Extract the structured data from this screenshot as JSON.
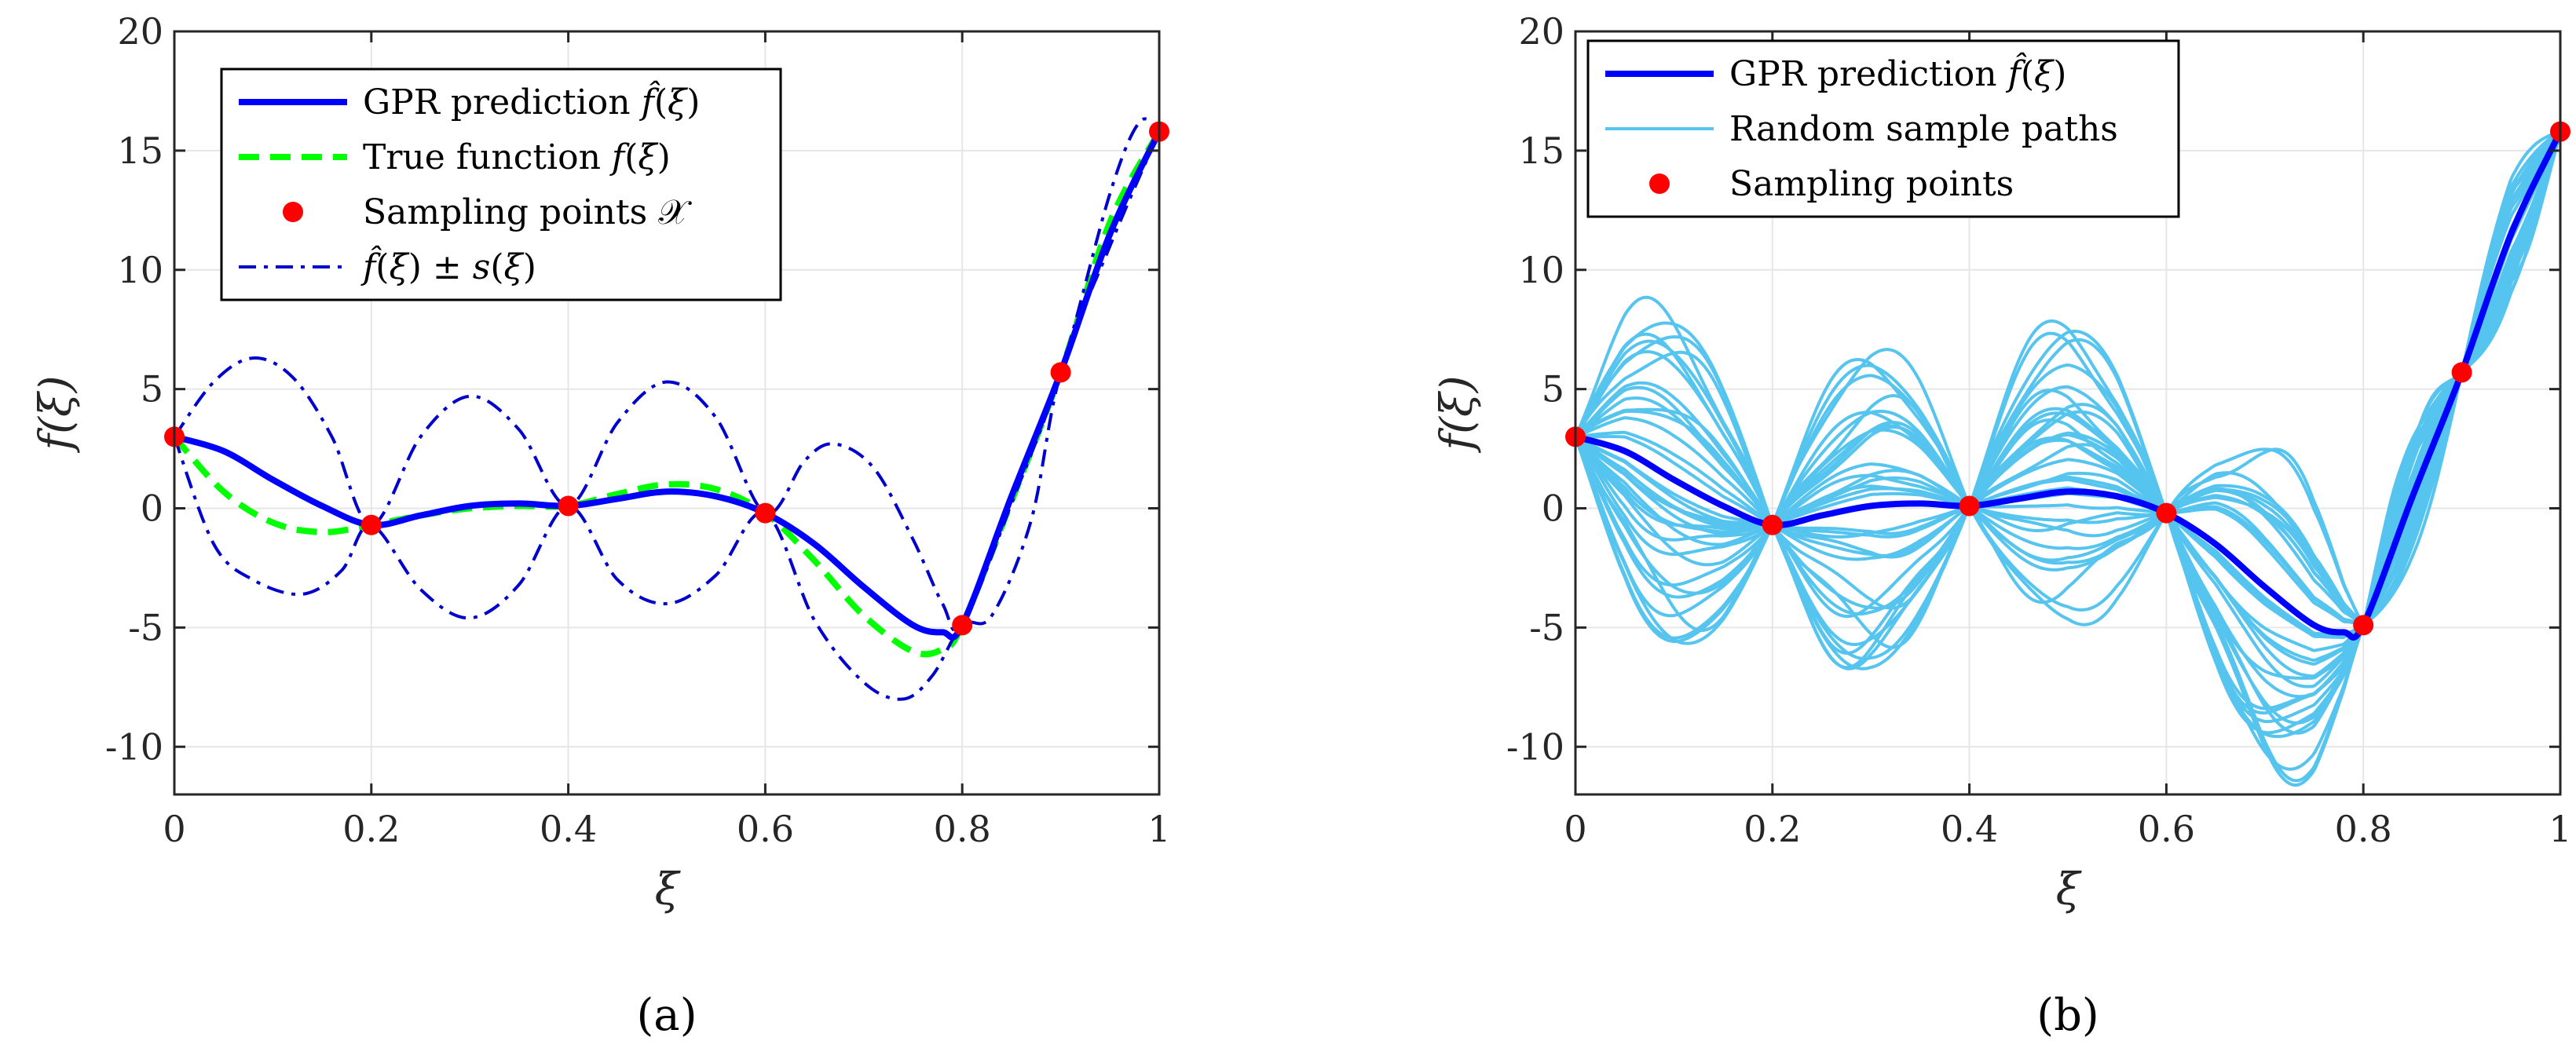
{
  "colors": {
    "gpr": "#0000ff",
    "true_fn": "#00ff00",
    "points": "#ff0000",
    "band": "#0000cc",
    "samples": "#55c4ee",
    "grid": "#e6e6e6",
    "axis": "#262626"
  },
  "chart_data": [
    {
      "type": "line",
      "panel_label": "(a)",
      "xlabel": "ξ",
      "ylabel": "f(ξ)",
      "xlim": [
        0,
        1
      ],
      "ylim": [
        -12,
        20
      ],
      "xticks": [
        "0",
        "0.2",
        "0.4",
        "0.6",
        "0.8",
        "1"
      ],
      "yticks": [
        "-10",
        "-5",
        "0",
        "5",
        "10",
        "15",
        "20"
      ],
      "grid": true,
      "legend_position": "top-left",
      "legend": [
        "GPR prediction f̂(ξ)",
        "True function f(ξ)",
        "Sampling points 𝒳",
        "f̂(ξ) ± s(ξ)"
      ],
      "series": [
        {
          "name": "GPR prediction",
          "style": "solid",
          "x": [
            0,
            0.05,
            0.1,
            0.15,
            0.2,
            0.25,
            0.3,
            0.35,
            0.4,
            0.45,
            0.5,
            0.55,
            0.6,
            0.65,
            0.7,
            0.75,
            0.78,
            0.8,
            0.85,
            0.9,
            0.95,
            1.0
          ],
          "y": [
            3.0,
            2.4,
            1.2,
            0.1,
            -0.7,
            -0.3,
            0.1,
            0.2,
            0.1,
            0.4,
            0.7,
            0.5,
            -0.2,
            -1.5,
            -3.3,
            -4.9,
            -5.2,
            -4.9,
            0.5,
            5.7,
            11.5,
            15.8
          ]
        },
        {
          "name": "True function",
          "style": "dashed",
          "x": [
            0,
            0.05,
            0.1,
            0.15,
            0.2,
            0.25,
            0.3,
            0.35,
            0.4,
            0.45,
            0.5,
            0.55,
            0.6,
            0.65,
            0.7,
            0.75,
            0.78,
            0.8,
            0.85,
            0.9,
            0.95,
            1.0
          ],
          "y": [
            3.0,
            0.7,
            -0.6,
            -1.0,
            -0.7,
            -0.3,
            0.0,
            0.1,
            0.1,
            0.6,
            1.0,
            0.8,
            -0.2,
            -2.2,
            -4.5,
            -6.0,
            -5.9,
            -4.9,
            0.3,
            5.7,
            12.0,
            15.8
          ]
        },
        {
          "name": "Upper bound",
          "style": "dashdot",
          "x": [
            0,
            0.04,
            0.08,
            0.12,
            0.16,
            0.2,
            0.25,
            0.3,
            0.35,
            0.4,
            0.45,
            0.5,
            0.55,
            0.6,
            0.64,
            0.67,
            0.71,
            0.75,
            0.78,
            0.8,
            0.85,
            0.9,
            0.95,
            0.98,
            1.0
          ],
          "y": [
            3.0,
            5.3,
            6.3,
            5.5,
            3.0,
            -0.7,
            3.0,
            4.7,
            3.3,
            0.1,
            3.6,
            5.3,
            3.8,
            -0.2,
            2.0,
            2.7,
            1.7,
            -1.3,
            -4.0,
            -4.9,
            0.2,
            5.7,
            13.2,
            16.2,
            15.8
          ]
        },
        {
          "name": "Lower bound",
          "style": "dashdot",
          "x": [
            0,
            0.04,
            0.08,
            0.13,
            0.17,
            0.2,
            0.25,
            0.3,
            0.35,
            0.4,
            0.45,
            0.5,
            0.55,
            0.6,
            0.65,
            0.7,
            0.74,
            0.77,
            0.8,
            0.83,
            0.87,
            0.9,
            0.95,
            1.0
          ],
          "y": [
            3.0,
            -1.5,
            -3.0,
            -3.6,
            -2.6,
            -0.7,
            -3.4,
            -4.6,
            -3.2,
            0.1,
            -3.0,
            -4.0,
            -2.8,
            -0.2,
            -4.7,
            -7.3,
            -8.0,
            -7.0,
            -4.9,
            -4.5,
            -0.5,
            5.7,
            11.0,
            15.8
          ]
        }
      ],
      "points": {
        "x": [
          0,
          0.2,
          0.4,
          0.6,
          0.8,
          0.9,
          1.0
        ],
        "y": [
          3.0,
          -0.7,
          0.1,
          -0.2,
          -4.9,
          5.7,
          15.8
        ]
      }
    },
    {
      "type": "line",
      "panel_label": "(b)",
      "xlabel": "ξ",
      "ylabel": "f(ξ)",
      "xlim": [
        0,
        1
      ],
      "ylim": [
        -12,
        20
      ],
      "xticks": [
        "0",
        "0.2",
        "0.4",
        "0.6",
        "0.8",
        "1"
      ],
      "yticks": [
        "-10",
        "-5",
        "0",
        "5",
        "10",
        "15",
        "20"
      ],
      "grid": true,
      "legend_position": "top-left",
      "legend": [
        "GPR prediction f̂(ξ)",
        "Random sample paths",
        "Sampling points"
      ],
      "series": [
        {
          "name": "GPR prediction",
          "style": "solid",
          "x": [
            0,
            0.05,
            0.1,
            0.15,
            0.2,
            0.25,
            0.3,
            0.35,
            0.4,
            0.45,
            0.5,
            0.55,
            0.6,
            0.65,
            0.7,
            0.75,
            0.78,
            0.8,
            0.85,
            0.9,
            0.95,
            1.0
          ],
          "y": [
            3.0,
            2.4,
            1.2,
            0.1,
            -0.7,
            -0.3,
            0.1,
            0.2,
            0.1,
            0.4,
            0.7,
            0.5,
            -0.2,
            -1.5,
            -3.3,
            -4.9,
            -5.2,
            -4.9,
            0.5,
            5.7,
            11.5,
            15.8
          ]
        }
      ],
      "sample_paths": {
        "count": 35,
        "seed": 12345
      },
      "points": {
        "x": [
          0,
          0.2,
          0.4,
          0.6,
          0.8,
          0.9,
          1.0
        ],
        "y": [
          3.0,
          -0.7,
          0.1,
          -0.2,
          -4.9,
          5.7,
          15.8
        ]
      }
    }
  ]
}
